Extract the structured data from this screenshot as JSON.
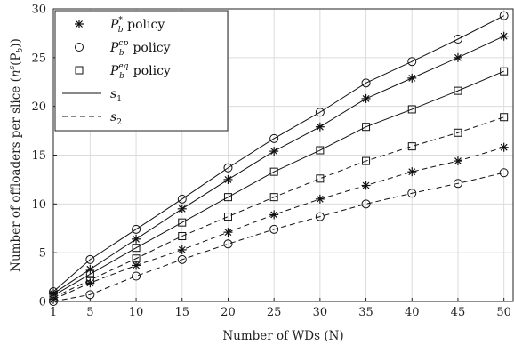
{
  "chart_data": {
    "type": "line",
    "xlabel": "Number of WDs (N)",
    "ylabel_parts": {
      "pre": "Number of offloaders per slice (",
      "n": "n",
      "s": "s",
      "p": "(P",
      "b": "b",
      "post": "))"
    },
    "x": [
      1,
      5,
      10,
      15,
      20,
      25,
      30,
      35,
      40,
      45,
      50
    ],
    "xlim": [
      1,
      51
    ],
    "ylim": [
      0,
      30
    ],
    "xticks": [
      "1",
      "5",
      "10",
      "15",
      "20",
      "25",
      "30",
      "35",
      "40",
      "45",
      "50"
    ],
    "yticks": [
      "0",
      "5",
      "10",
      "15",
      "20",
      "25",
      "30"
    ],
    "grid": true,
    "legend_placement": "top-left",
    "legend": [
      {
        "marker": "star",
        "text": " policy",
        "sup": "*",
        "sub": "b",
        "base": "P"
      },
      {
        "marker": "circle",
        "text": " policy",
        "sup": "cp",
        "sub": "b",
        "base": "P"
      },
      {
        "marker": "square",
        "text": " policy",
        "sup": "eq",
        "sub": "b",
        "base": "P"
      },
      {
        "line": "solid",
        "base": "s",
        "sub": "1"
      },
      {
        "line": "dashed",
        "base": "s",
        "sub": "2"
      }
    ],
    "series": [
      {
        "marker": "circle",
        "line": "solid",
        "values": [
          1.0,
          4.3,
          7.4,
          10.5,
          13.7,
          16.7,
          19.4,
          22.4,
          24.6,
          26.9,
          29.3
        ]
      },
      {
        "marker": "star",
        "line": "solid",
        "values": [
          0.8,
          3.3,
          6.4,
          9.5,
          12.5,
          15.4,
          17.9,
          20.8,
          22.9,
          25.0,
          27.2
        ]
      },
      {
        "marker": "square",
        "line": "solid",
        "values": [
          0.6,
          2.8,
          5.5,
          8.1,
          10.7,
          13.3,
          15.5,
          17.9,
          19.7,
          21.6,
          23.6
        ]
      },
      {
        "marker": "square",
        "line": "dashed",
        "values": [
          0.4,
          2.2,
          4.4,
          6.7,
          8.7,
          10.7,
          12.6,
          14.4,
          15.9,
          17.3,
          18.9
        ]
      },
      {
        "marker": "star",
        "line": "dashed",
        "values": [
          0.2,
          1.9,
          3.7,
          5.3,
          7.1,
          8.9,
          10.5,
          11.9,
          13.3,
          14.4,
          15.8
        ]
      },
      {
        "marker": "circle",
        "line": "dashed",
        "values": [
          0.0,
          0.7,
          2.6,
          4.3,
          5.9,
          7.4,
          8.7,
          10.0,
          11.1,
          12.1,
          13.2
        ]
      }
    ]
  }
}
